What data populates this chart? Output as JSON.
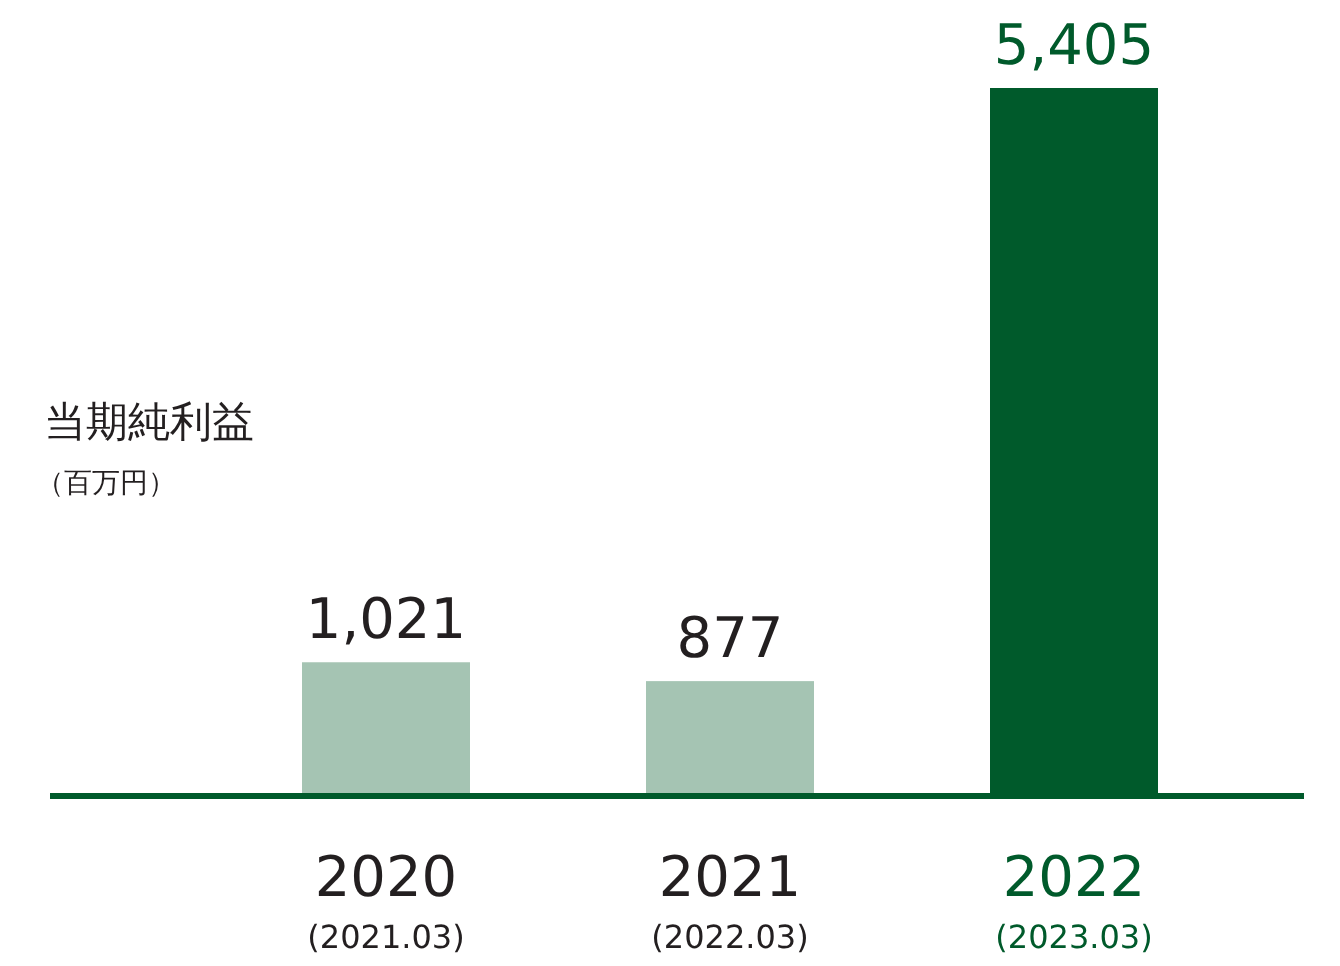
{
  "chart_data": {
    "type": "bar",
    "title": "当期純利益",
    "subtitle": "（百万円）",
    "categories": [
      "2020\n(2021.03)",
      "2021\n(2022.03)",
      "2022\n(2023.03)"
    ],
    "values": [
      1021,
      877,
      5405
    ],
    "colors": [
      "#a5c4b3",
      "#a5c4b3",
      "#005a2b"
    ],
    "value_labels": [
      "1,021",
      "877",
      "5,405"
    ]
  }
}
